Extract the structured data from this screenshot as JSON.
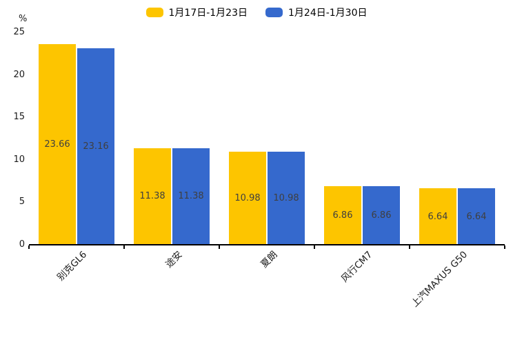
{
  "chart_data": {
    "type": "bar",
    "title": "",
    "categories": [
      "别克GL6",
      "途安",
      "夏朗",
      "风行CM7",
      "上汽MAXUS G50"
    ],
    "series": [
      {
        "name": "1月17日-1月23日",
        "color": "#FDC500",
        "values": [
          23.66,
          11.38,
          10.98,
          6.86,
          6.64
        ]
      },
      {
        "name": "1月24日-1月30日",
        "color": "#3569CD",
        "values": [
          23.16,
          11.38,
          10.98,
          6.86,
          6.64
        ]
      }
    ],
    "xlabel": "",
    "ylabel": "%",
    "ylim": [
      0,
      25
    ],
    "yticks": [
      0,
      5,
      10,
      15,
      20,
      25
    ],
    "grid": false,
    "legend_position": "top-center",
    "value_labels": "centered-inside-bars",
    "xtick_label_rotation_deg": 45
  },
  "colors": {
    "series1": "#FDC500",
    "series2": "#3569CD",
    "value_label": "#3f3f3f",
    "axis": "#000000",
    "background": "#ffffff"
  }
}
